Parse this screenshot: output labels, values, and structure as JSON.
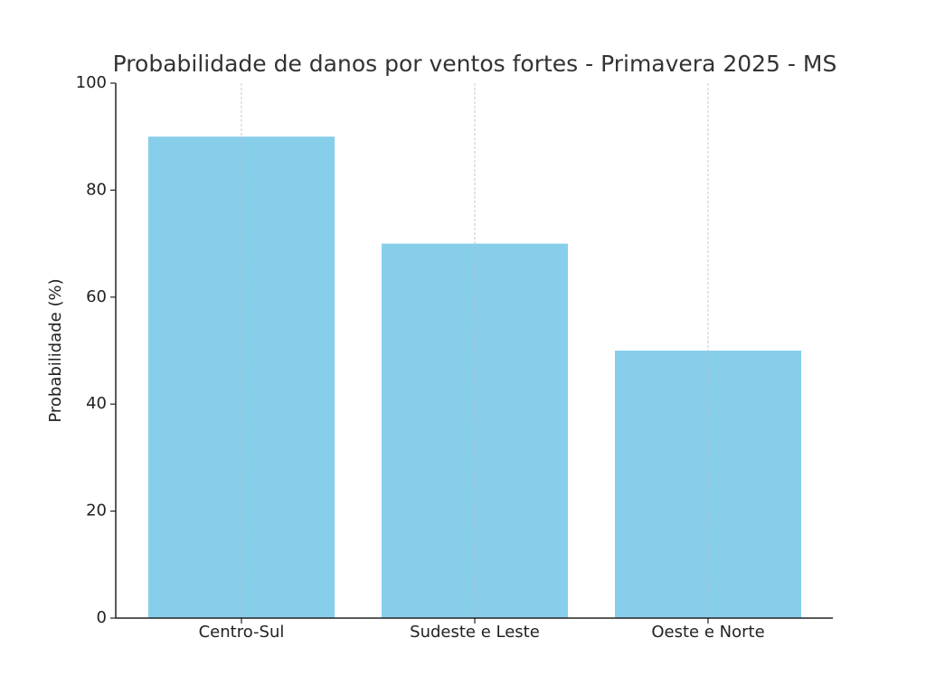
{
  "chart_data": {
    "type": "bar",
    "title": "Probabilidade de danos por ventos fortes - Primavera 2025 - MS",
    "y_label": "Probabilidade (%)",
    "categories": [
      "Centro-Sul",
      "Sudeste e Leste",
      "Oeste e Norte"
    ],
    "values": [
      90,
      70,
      50
    ],
    "color": "#87ceeb",
    "ylim": [
      0,
      100
    ],
    "yticks": [
      0,
      20,
      40,
      60,
      80,
      100
    ],
    "grid": true
  }
}
